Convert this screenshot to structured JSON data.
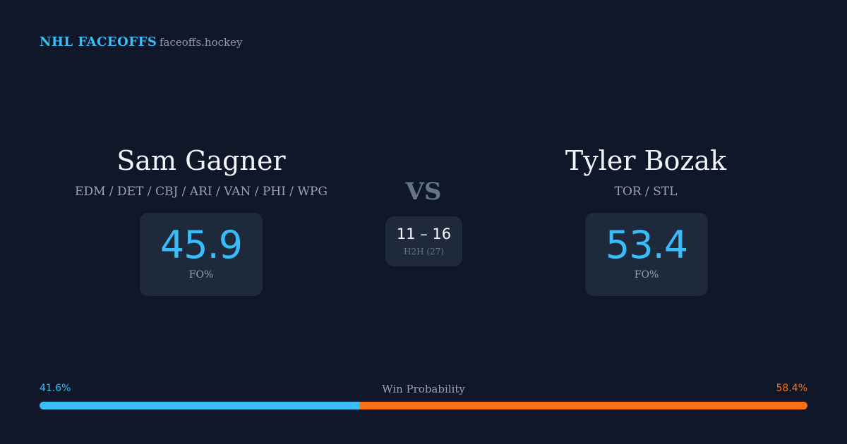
{
  "header": {
    "brand": "NHL FACEOFFS",
    "site": "faceoffs.hockey"
  },
  "players": [
    {
      "name": "Sam Gagner",
      "teams": "EDM / DET / CBJ / ARI / VAN / PHI / WPG",
      "fo_pct": 45.9,
      "fo_label": "FO%"
    },
    {
      "name": "Tyler Bozak",
      "teams": "TOR / STL",
      "fo_pct": 53.4,
      "fo_label": "FO%"
    }
  ],
  "matchup": {
    "vs": "VS",
    "h2h_score": "11 – 16",
    "h2h_label": "H2H (27)"
  },
  "win_probability": {
    "label": "Win Probability",
    "values": [
      41.6,
      58.4
    ],
    "value_labels": [
      "41.6%",
      "58.4%"
    ],
    "colors": [
      "#38bdf8",
      "#f97316"
    ]
  }
}
